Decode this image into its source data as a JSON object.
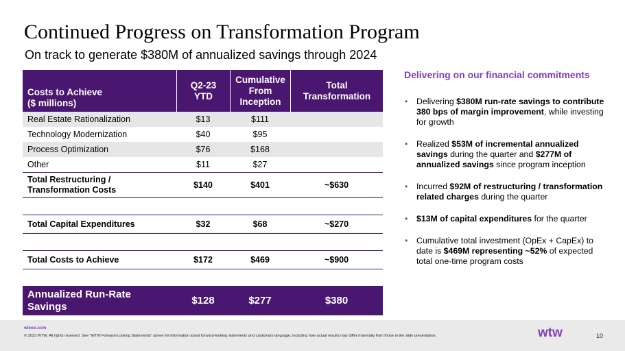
{
  "title": "Continued Progress on Transformation Program",
  "subtitle": "On track to generate $380M of annualized savings through 2024",
  "table": {
    "header": {
      "col0_line1": "Costs to Achieve",
      "col0_line2": "($ millions)",
      "col1_line1": "Q2-23",
      "col1_line2": "YTD",
      "col2_line1": "Cumulative",
      "col2_line2": "From",
      "col2_line3": "Inception",
      "col3_line1": "Total",
      "col3_line2": "Transformation"
    },
    "rows": [
      {
        "label": "Real Estate Rationalization",
        "ytd": "$13",
        "cumulative": "$111",
        "total": ""
      },
      {
        "label": "Technology Modernization",
        "ytd": "$40",
        "cumulative": "$95",
        "total": ""
      },
      {
        "label": "Process Optimization",
        "ytd": "$76",
        "cumulative": "$168",
        "total": ""
      },
      {
        "label": "Other",
        "ytd": "$11",
        "cumulative": "$27",
        "total": ""
      }
    ],
    "total_restructuring": {
      "label_line1": "Total Restructuring /",
      "label_line2": "Transformation Costs",
      "ytd": "$140",
      "cumulative": "$401",
      "total": "~$630"
    },
    "total_capex": {
      "label": "Total Capital Expenditures",
      "ytd": "$32",
      "cumulative": "$68",
      "total": "~$270"
    },
    "total_costs": {
      "label": "Total Costs to Achieve",
      "ytd": "$172",
      "cumulative": "$469",
      "total": "~$900"
    },
    "savings": {
      "label_line1": "Annualized Run-Rate",
      "label_line2": "Savings",
      "ytd": "$128",
      "cumulative": "$277",
      "total": "$380"
    }
  },
  "panel": {
    "heading": "Delivering on our financial commitments",
    "bullets": [
      {
        "a": "Delivering ",
        "b": "$380M run-rate savings to contribute 380 bps of margin improvement",
        "c": ", while investing for growth"
      },
      {
        "a": "Realized ",
        "b": "$53M of incremental annualized savings",
        "c": " during the quarter and ",
        "d": "$277M of annualized savings",
        "e": " since program inception"
      },
      {
        "a": "Incurred ",
        "b": "$92M of restructuring / transformation related charges",
        "c": " during the quarter"
      },
      {
        "b": "$13M of capital expenditures",
        "c": " for the quarter"
      },
      {
        "a": "Cumulative total investment (OpEx + CapEx) to date is ",
        "b": "$469M representing ~52%",
        "c": " of expected total one-time program costs"
      }
    ]
  },
  "footer": {
    "url": "wtwco.com",
    "legal": "© 2023 WTW. All rights reserved. See \"WTW Forward-Looking Statements\" above for information about forward-looking statements and cautionary language, including how actual results may differ materially from those in the slide presentation.",
    "logo_text": "wtw",
    "page_number": "10"
  },
  "colors": {
    "brand_purple": "#4a1770",
    "accent_purple": "#7f3fbd",
    "row_shade": "#e6e6e6"
  }
}
